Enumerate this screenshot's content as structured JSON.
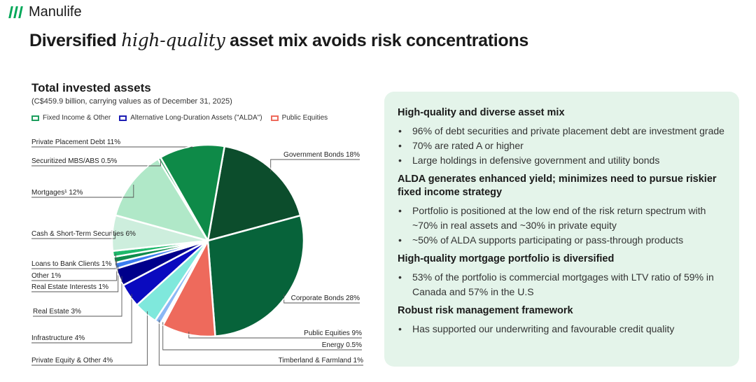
{
  "brand": {
    "name": "Manulife",
    "color": "#00a758"
  },
  "slide": {
    "title_prefix": "Diversified",
    "title_accent": "high-quality",
    "title_suffix": "asset mix avoids risk concentrations"
  },
  "chart_data": {
    "type": "pie",
    "title": "Total invested assets",
    "subtitle": "(C$459.9 billion, carrying values as of December 31, 2025)",
    "unit": "%",
    "legend": [
      {
        "label": "Fixed Income & Other",
        "color": "#1e9e5e"
      },
      {
        "label": "Alternative Long-Duration Assets (\"ALDA\")",
        "color": "#1c1cb3"
      },
      {
        "label": "Public Equities",
        "color": "#ee6a5c"
      }
    ],
    "slices": [
      {
        "label": "Government Bonds 18%",
        "value": 18,
        "group": "Fixed Income & Other",
        "color": "#0c4d2c"
      },
      {
        "label": "Corporate Bonds 28%",
        "value": 28,
        "group": "Fixed Income & Other",
        "color": "#07633a"
      },
      {
        "label": "Public Equities 9%",
        "value": 9,
        "group": "Public Equities",
        "color": "#ee6a5c"
      },
      {
        "label": "Energy 0.5%",
        "value": 0.5,
        "group": "Alternative Long-Duration Assets (\"ALDA\")",
        "color": "#ffffff"
      },
      {
        "label": "Timberland & Farmland 1%",
        "value": 1,
        "group": "Alternative Long-Duration Assets (\"ALDA\")",
        "color": "#8cb8f5"
      },
      {
        "label": "Private Equity & Other 4%",
        "value": 4,
        "group": "Alternative Long-Duration Assets (\"ALDA\")",
        "color": "#7fe8dc"
      },
      {
        "label": "Infrastructure 4%",
        "value": 4,
        "group": "Alternative Long-Duration Assets (\"ALDA\")",
        "color": "#0a0abf"
      },
      {
        "label": "Real Estate 3%",
        "value": 3,
        "group": "Alternative Long-Duration Assets (\"ALDA\")",
        "color": "#00008b"
      },
      {
        "label": "Real Estate Interests 1%",
        "value": 1,
        "group": "Alternative Long-Duration Assets (\"ALDA\")",
        "color": "#3b7df0"
      },
      {
        "label": "Other 1%",
        "value": 1,
        "group": "Fixed Income & Other",
        "color": "#0e8c4c"
      },
      {
        "label": "Loans to Bank Clients 1%",
        "value": 1,
        "group": "Fixed Income & Other",
        "color": "#1db86a"
      },
      {
        "label": "Cash & Short-Term Securities 6%",
        "value": 6,
        "group": "Fixed Income & Other",
        "color": "#cdeedd"
      },
      {
        "label": "Mortgages¹ 12%",
        "value": 12,
        "group": "Fixed Income & Other",
        "color": "#b0e8c8"
      },
      {
        "label": "Securitized MBS/ABS 0.5%",
        "value": 0.5,
        "group": "Fixed Income & Other",
        "color": "#3aa66a"
      },
      {
        "label": "Private Placement Debt 11%",
        "value": 11,
        "group": "Fixed Income & Other",
        "color": "#0e8a48"
      }
    ]
  },
  "highlights": [
    {
      "heading": "High-quality and diverse asset mix",
      "bullets": [
        "96% of debt securities and private placement debt are investment grade",
        "70% are rated A or higher",
        "Large holdings in defensive government and utility bonds"
      ]
    },
    {
      "heading": "ALDA generates enhanced yield; minimizes need to pursue riskier fixed income strategy",
      "bullets": [
        "Portfolio is positioned at the low end of the risk return spectrum with ~70% in real assets and ~30% in private equity",
        "~50% of ALDA supports participating or pass-through products"
      ]
    },
    {
      "heading": "High-quality mortgage portfolio is diversified",
      "bullets": [
        "53% of the portfolio is commercial mortgages with LTV ratio of 59% in Canada and 57% in the U.S"
      ]
    },
    {
      "heading": "Robust risk management framework",
      "bullets": [
        "Has supported our underwriting and favourable credit quality"
      ]
    }
  ]
}
